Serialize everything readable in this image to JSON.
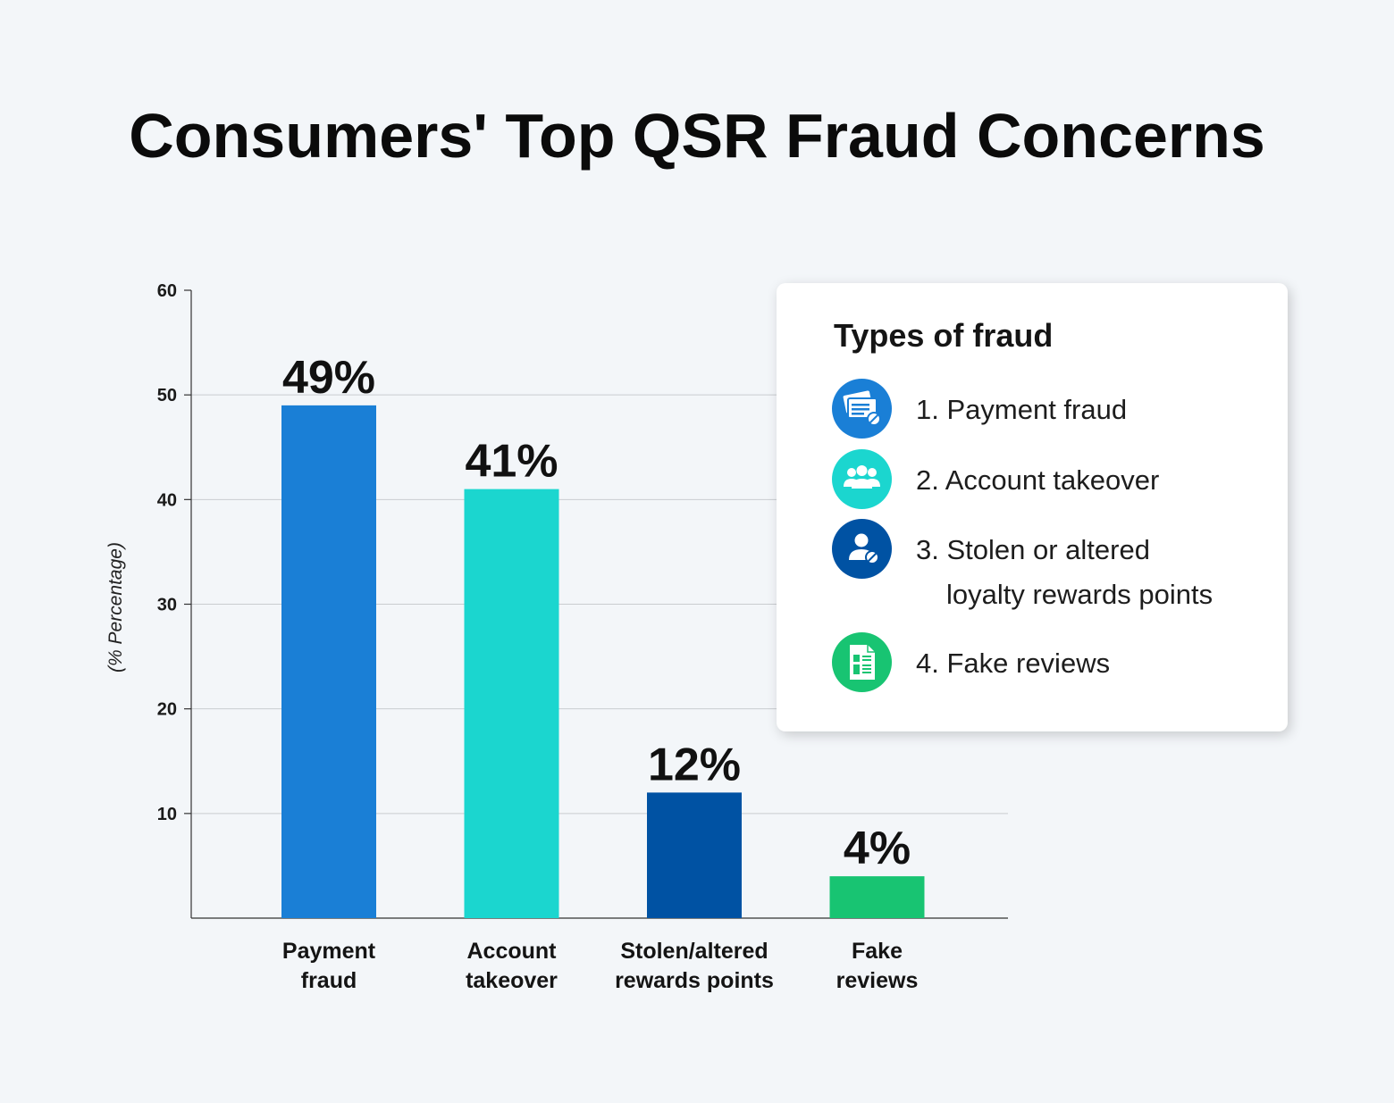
{
  "title": "Consumers' Top QSR Fraud Concerns",
  "chart_data": {
    "type": "bar",
    "categories": [
      [
        "Payment",
        "fraud"
      ],
      [
        "Account",
        "takeover"
      ],
      [
        "Stolen/altered",
        "rewards points"
      ],
      [
        "Fake",
        "reviews"
      ]
    ],
    "values": [
      49,
      41,
      12,
      4
    ],
    "value_labels": [
      "49%",
      "41%",
      "12%",
      "4%"
    ],
    "colors": [
      "#1a7fd6",
      "#1bd6cf",
      "#0052a3",
      "#18c472"
    ],
    "ylabel": "(% Percentage)",
    "ylim": [
      0,
      60
    ],
    "yticks": [
      10,
      20,
      30,
      40,
      50,
      60
    ],
    "grid": true
  },
  "legend": {
    "title": "Types of fraud",
    "items": [
      {
        "label": "1. Payment fraud",
        "icon": "credit-card-blocked-icon",
        "color": "#1a7fd6"
      },
      {
        "label": "2. Account takeover",
        "icon": "user-group-icon",
        "color": "#1bd6cf"
      },
      {
        "label": "3. Stolen or altered",
        "label_cont": "loyalty rewards points",
        "icon": "user-blocked-icon",
        "color": "#0052a3"
      },
      {
        "label": "4. Fake reviews",
        "icon": "review-document-icon",
        "color": "#18c472"
      }
    ]
  }
}
